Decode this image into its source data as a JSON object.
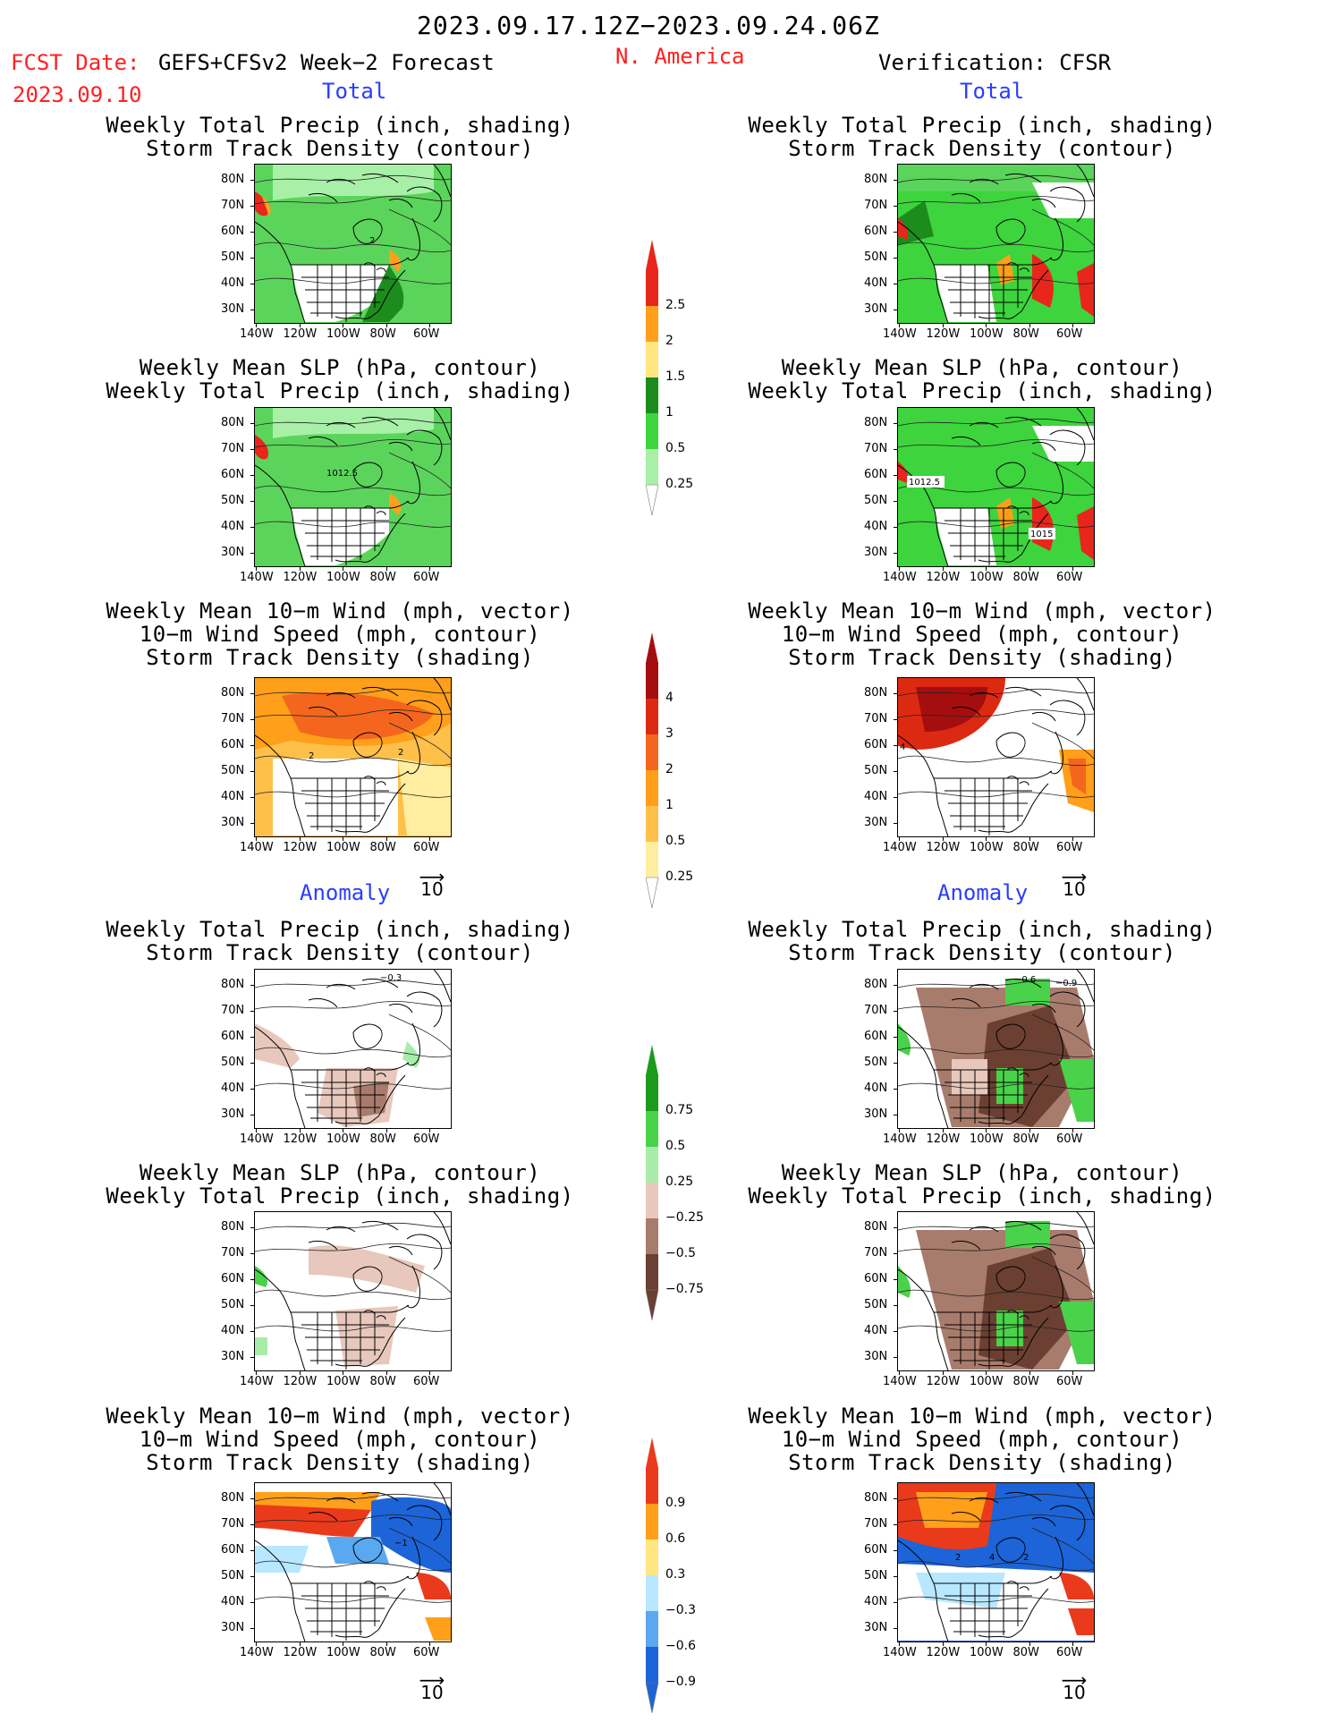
{
  "header": {
    "period": "2023.09.17.12Z−2023.09.24.06Z",
    "fcst_label": "FCST Date:",
    "fcst_model": "GEFS+CFSv2 Week−2 Forecast",
    "fcst_date": "2023.09.10",
    "region": "N. America",
    "verification": "Verification: CFSR"
  },
  "sections": {
    "total": "Total",
    "anomaly": "Anomaly"
  },
  "panel_titles": {
    "precip_storm": [
      "Weekly Total Precip (inch, shading)",
      "Storm Track Density (contour)"
    ],
    "slp_precip": [
      "Weekly Mean SLP (hPa, contour)",
      "Weekly Total Precip (inch, shading)"
    ],
    "wind_storm": [
      "Weekly Mean 10−m Wind (mph, vector)",
      "10−m Wind Speed (mph, contour)",
      "Storm Track Density (shading)"
    ]
  },
  "axes": {
    "lat_ticks": [
      "80N",
      "70N",
      "60N",
      "50N",
      "40N",
      "30N"
    ],
    "lon_ticks": [
      "140W",
      "120W",
      "100W",
      "80W",
      "60W"
    ]
  },
  "vector_ref": "10",
  "contour_labels": {
    "fc_precip_total": "2",
    "fc_slp_total": "1012.5",
    "fc_wind_total_a": "2",
    "fc_wind_total_b": "2",
    "obs_slp_total_a": "1012.5",
    "obs_slp_total_b": "1015",
    "obs_wind_total": "4",
    "fc_precip_anom": "−0.3",
    "obs_precip_anom_a": "−0.6",
    "obs_precip_anom_b": "−0.9",
    "fc_wind_anom": "−1",
    "obs_wind_anom_a": "2",
    "obs_wind_anom_b": "4",
    "obs_wind_anom_c": "2"
  },
  "colorbars": {
    "precip_total": {
      "labels": [
        "2.5",
        "2",
        "1.5",
        "1",
        "0.5",
        "0.25"
      ],
      "colors": [
        "#e8261c",
        "#ff9f1a",
        "#ffe680",
        "#1c8c1c",
        "#3dd43d",
        "#a8f0a8"
      ]
    },
    "storm_total": {
      "labels": [
        "4",
        "3",
        "2",
        "1",
        "0.5",
        "0.25"
      ],
      "colors": [
        "#a50e0e",
        "#dc2a12",
        "#f4661e",
        "#ff9f1a",
        "#ffc04a",
        "#ffeda0"
      ]
    },
    "precip_anom": {
      "labels": [
        "0.75",
        "0.5",
        "0.25",
        "−0.25",
        "−0.5",
        "−0.75"
      ],
      "colors": [
        "#1c9a1c",
        "#4ad24a",
        "#a8ecaa",
        "#e8c8bc",
        "#a87c6c",
        "#6b4032"
      ]
    },
    "storm_anom": {
      "labels": [
        "0.9",
        "0.6",
        "0.3",
        "−0.3",
        "−0.6",
        "−0.9"
      ],
      "colors": [
        "#ea3a1c",
        "#ff9f1a",
        "#ffe680",
        "#b8e8ff",
        "#5aa8f0",
        "#1c64d8"
      ]
    }
  }
}
